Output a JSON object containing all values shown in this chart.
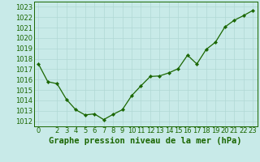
{
  "x": [
    0,
    1,
    2,
    3,
    4,
    5,
    6,
    7,
    8,
    9,
    10,
    11,
    12,
    13,
    14,
    15,
    16,
    17,
    18,
    19,
    20,
    21,
    22,
    23
  ],
  "y": [
    1017.5,
    1015.8,
    1015.6,
    1014.1,
    1013.1,
    1012.6,
    1012.7,
    1012.15,
    1012.65,
    1013.1,
    1014.45,
    1015.4,
    1016.3,
    1016.35,
    1016.65,
    1017.05,
    1018.35,
    1017.5,
    1018.9,
    1019.6,
    1021.05,
    1021.7,
    1022.15,
    1022.65
  ],
  "line_color": "#1a6600",
  "marker_color": "#1a6600",
  "bg_color": "#c8eae8",
  "grid_color": "#b0d8d4",
  "title": "Graphe pression niveau de la mer (hPa)",
  "ylim_min": 1011.5,
  "ylim_max": 1023.5,
  "xlim_min": -0.5,
  "xlim_max": 23.5,
  "yticks": [
    1012,
    1013,
    1014,
    1015,
    1016,
    1017,
    1018,
    1019,
    1020,
    1021,
    1022,
    1023
  ],
  "xticks": [
    0,
    2,
    3,
    4,
    5,
    6,
    7,
    8,
    9,
    10,
    11,
    12,
    13,
    14,
    15,
    16,
    17,
    18,
    19,
    20,
    21,
    22,
    23
  ],
  "tick_label_color": "#1a6600",
  "title_color": "#1a6600",
  "axis_color": "#1a6600",
  "title_fontsize": 7.5,
  "tick_fontsize": 6.0,
  "line_width": 0.9,
  "marker_size": 2.2
}
